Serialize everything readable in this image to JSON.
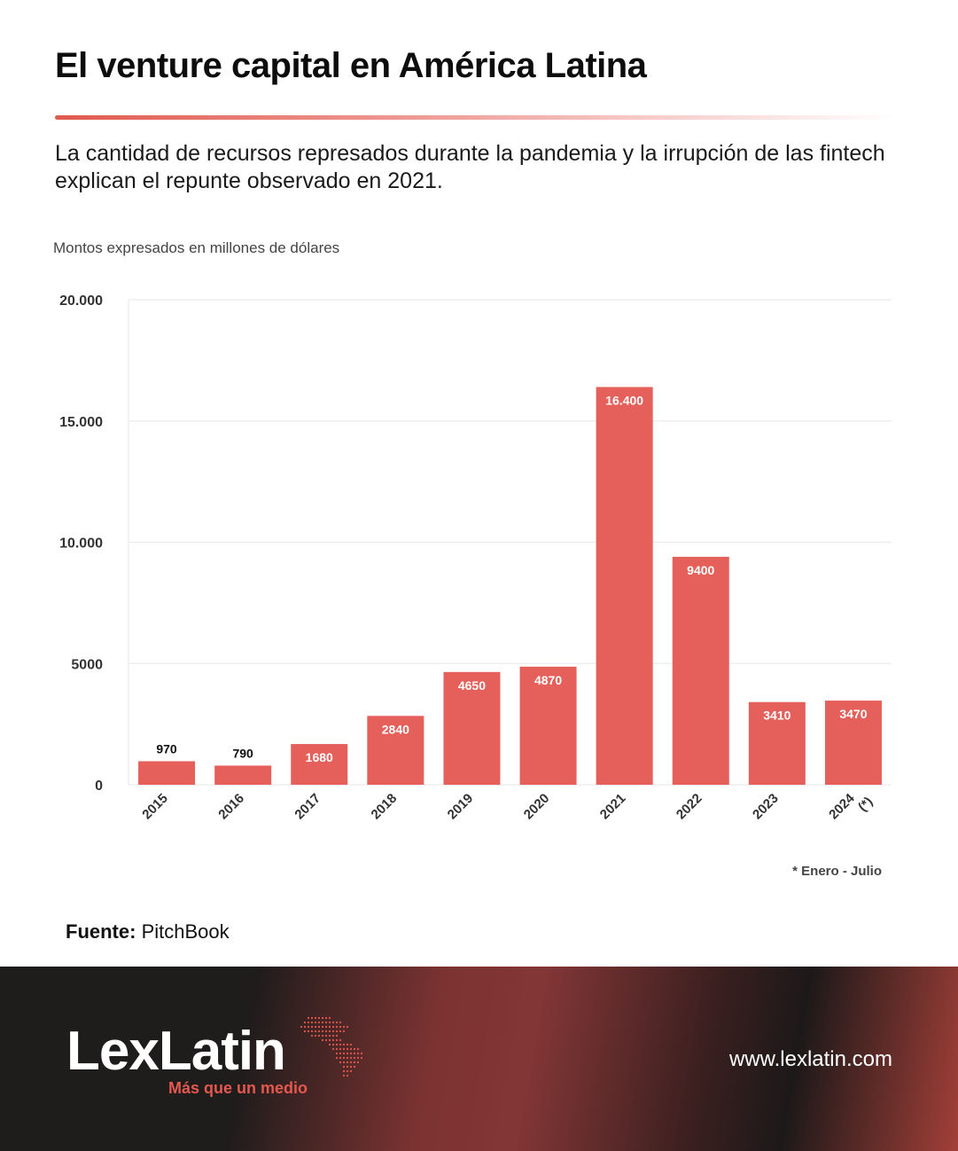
{
  "title": "El venture capital en América Latina",
  "subtitle": "La cantidad de recursos represados durante la pandemia y la irrupción de las fintech explican el repunte observado en 2021.",
  "units_note": "Montos expresados en millones de dólares",
  "footnote": "* Enero - Julio",
  "source": {
    "label": "Fuente:",
    "value": "PitchBook"
  },
  "footer": {
    "brand": "LexLatin",
    "tagline": "Más que un medio",
    "website": "www.lexlatin.com"
  },
  "colors": {
    "bar": "#e5605a",
    "accent": "#e05a50",
    "footer_dark": "#1f1c1c",
    "footer_red": "#833636"
  },
  "icons": {
    "logo_map": "latin-america-dot-map-icon"
  },
  "chart_data": {
    "type": "bar",
    "categories": [
      "2015",
      "2016",
      "2017",
      "2018",
      "2019",
      "2020",
      "2021",
      "2022",
      "2023",
      "2024\n(*)"
    ],
    "values": [
      970,
      790,
      1680,
      2840,
      4650,
      4870,
      16400,
      9400,
      3410,
      3470
    ],
    "value_labels": [
      "970",
      "790",
      "1680",
      "2840",
      "4650",
      "4870",
      "16.400",
      "9400",
      "3410",
      "3470"
    ],
    "ylim": [
      0,
      20000
    ],
    "yticks": [
      0,
      5000,
      10000,
      15000,
      20000
    ],
    "ytick_labels": [
      "0",
      "5000",
      "10.000",
      "15.000",
      "20.000"
    ],
    "grid": true,
    "title": "",
    "xlabel": "",
    "ylabel": ""
  }
}
